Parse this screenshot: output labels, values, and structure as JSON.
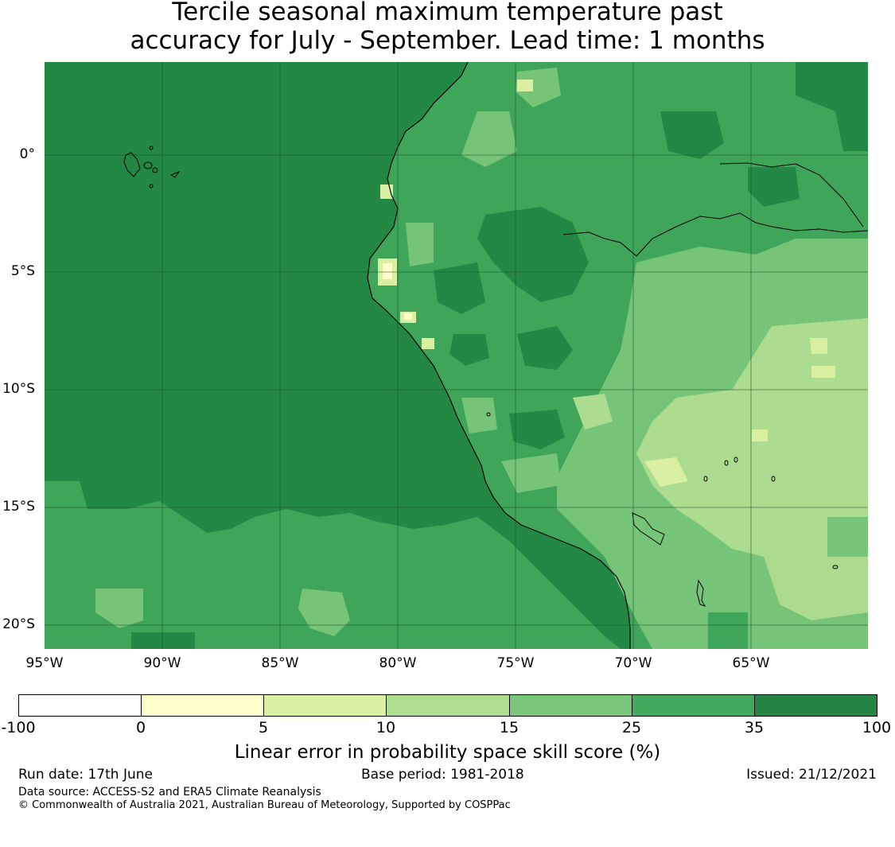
{
  "header": {
    "title_line1": "Tercile seasonal maximum temperature past",
    "title_line2": "accuracy for July - September. Lead time: 1 months"
  },
  "map": {
    "lat_labels": [
      "0°",
      "5°S",
      "10°S",
      "15°S",
      "20°S"
    ],
    "lon_labels": [
      "95°W",
      "90°W",
      "85°W",
      "80°W",
      "75°W",
      "70°W",
      "65°W"
    ],
    "lon_range": [
      -95,
      -60
    ],
    "lat_range": [
      -21,
      4
    ],
    "colors": {
      "ocean_main": "#248845",
      "mid_green": "#3fa659",
      "light_green": "#76c478",
      "pale_green": "#acdc8f",
      "very_pale": "#d9f0a2",
      "yellow": "#fffdc9",
      "coast": "#000000",
      "grid": "#1a4d2a"
    }
  },
  "colorbar": {
    "ticks": [
      "-100",
      "0",
      "5",
      "10",
      "15",
      "25",
      "35",
      "100"
    ],
    "colors": [
      "#ffffff",
      "#ffffcc",
      "#d9f0a3",
      "#addd8e",
      "#78c679",
      "#41ab5d",
      "#238443"
    ],
    "label": "Linear error in probability space skill score (%)"
  },
  "footer": {
    "run_date": "Run date: 17th June",
    "base_period": "Base period: 1981-2018",
    "issued": "Issued: 21/12/2021",
    "data_source": "Data source: ACCESS-S2 and ERA5 Climate Reanalysis",
    "copyright": "© Commonwealth of Australia 2021, Australian Bureau of Meteorology, Supported by COSPPac"
  }
}
